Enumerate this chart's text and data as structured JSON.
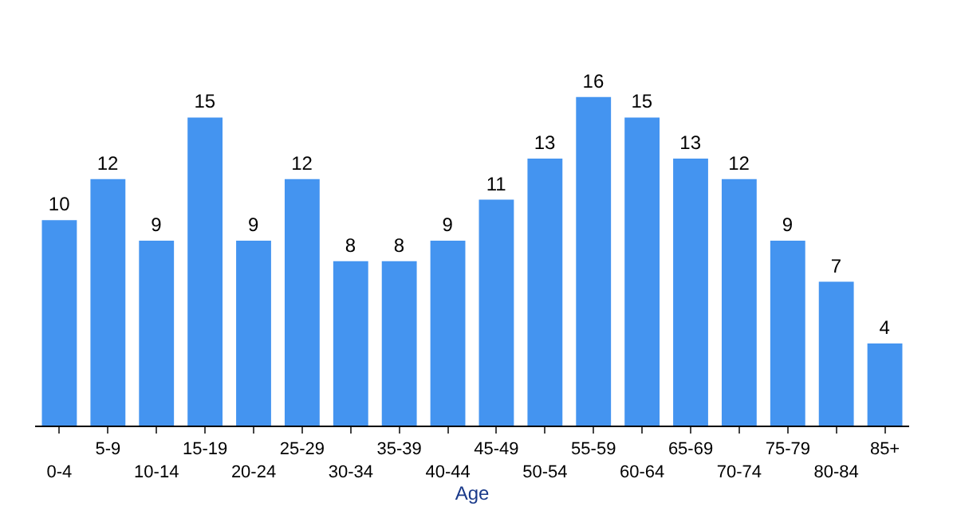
{
  "chart_data": {
    "type": "bar",
    "xlabel": "Age",
    "categories": [
      "0-4",
      "5-9",
      "10-14",
      "15-19",
      "20-24",
      "25-29",
      "30-34",
      "35-39",
      "40-44",
      "45-49",
      "50-54",
      "55-59",
      "60-64",
      "65-69",
      "70-74",
      "75-79",
      "80-84",
      "85+"
    ],
    "values": [
      10,
      12,
      9,
      15,
      9,
      12,
      8,
      8,
      9,
      11,
      13,
      16,
      15,
      13,
      12,
      9,
      7,
      4
    ],
    "color": "#4494f0",
    "data_labels": true
  }
}
